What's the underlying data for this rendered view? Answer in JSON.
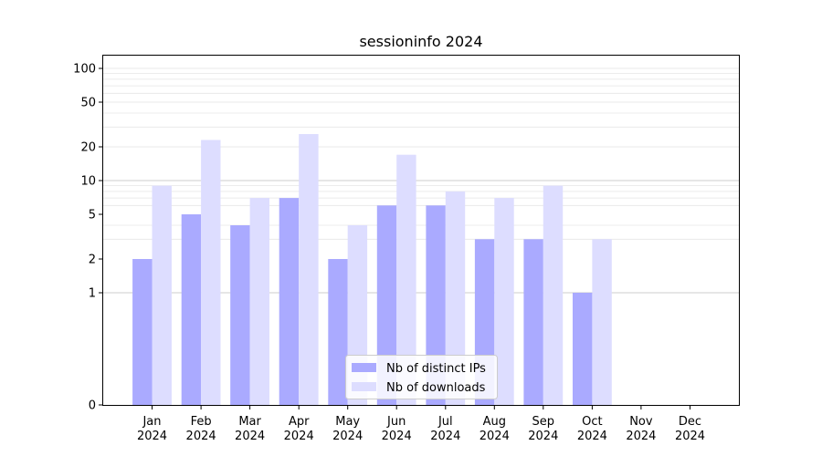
{
  "chart_data": {
    "type": "bar",
    "title": "sessioninfo 2024",
    "xlabel": "",
    "ylabel": "",
    "yscale": "symlog",
    "ylim": [
      0,
      130
    ],
    "yticks": [
      0,
      1,
      2,
      5,
      10,
      20,
      50,
      100
    ],
    "ytick_labels": [
      "0",
      "1",
      "2",
      "5",
      "10",
      "20",
      "50",
      "100"
    ],
    "categories": [
      "Jan\n2024",
      "Feb\n2024",
      "Mar\n2024",
      "Apr\n2024",
      "May\n2024",
      "Jun\n2024",
      "Jul\n2024",
      "Aug\n2024",
      "Sep\n2024",
      "Oct\n2024",
      "Nov\n2024",
      "Dec\n2024"
    ],
    "series": [
      {
        "name": "Nb of distinct IPs",
        "color": "#aaaaff",
        "values": [
          2,
          5,
          4,
          7,
          2,
          6,
          6,
          3,
          3,
          1,
          0,
          0
        ]
      },
      {
        "name": "Nb of downloads",
        "color": "#ddddff",
        "values": [
          9,
          23,
          7,
          26,
          4,
          17,
          8,
          7,
          9,
          3,
          0,
          0
        ]
      }
    ],
    "grid": true,
    "legend_placement": "bottom-center"
  }
}
